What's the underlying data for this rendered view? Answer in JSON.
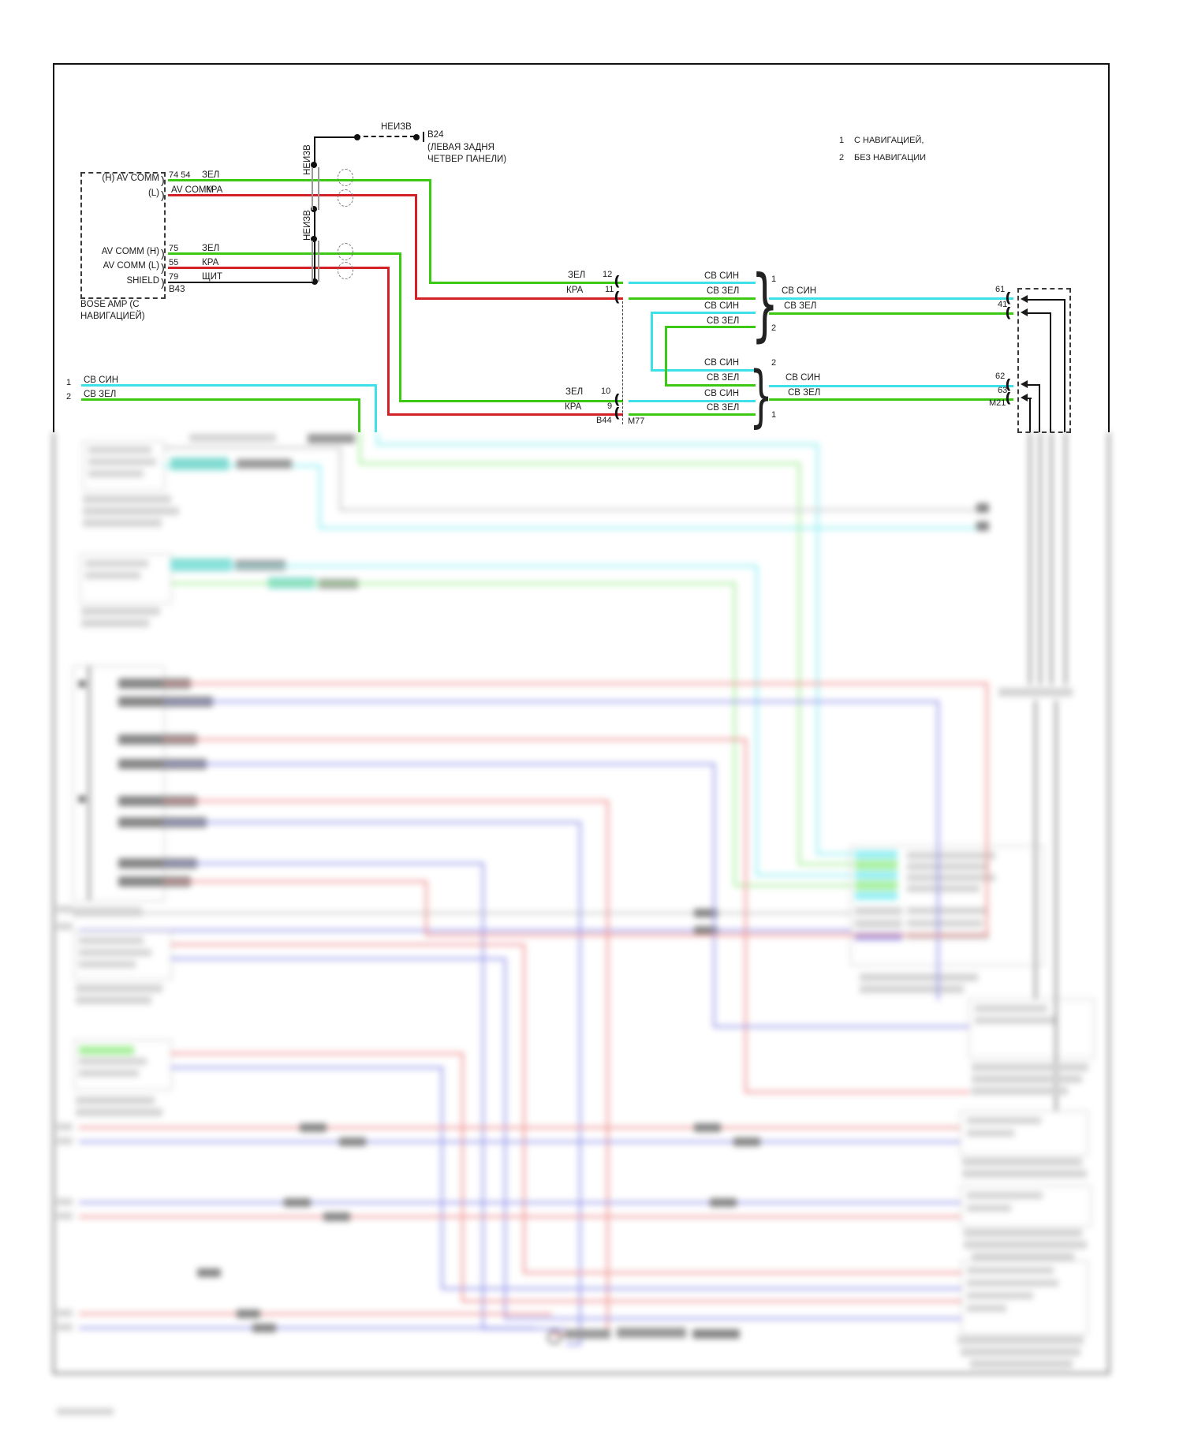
{
  "palette": {
    "wire_green": "#3cc914",
    "wire_red": "#d42128",
    "wire_cyan": "#3fe1e9",
    "wire_black": "#111111",
    "blur_gray": "#c9c9c9",
    "blur_cyan": "#8deef2",
    "blur_green": "#9fee93",
    "blur_red": "#f09090",
    "blur_blue": "#9595ea",
    "teal_highlight": "#76d8ce"
  },
  "glyphs": {
    "paren": ")",
    "arcs": "((",
    "brace": "}"
  },
  "legend": {
    "n1": "1",
    "t1": "С НАВИГАЦИЕЙ,",
    "n2": "2",
    "t2": "БЕЗ НАВИГАЦИИ"
  },
  "b24": {
    "wire_label": "НЕИЗВ",
    "twist_label1": "НЕИЗВ",
    "twist_label2": "НЕИЗВ",
    "code": "B24",
    "desc1": "(ЛЕВАЯ ЗАДНЯ",
    "desc2": "ЧЕТВЕР ПАНЕЛИ)"
  },
  "bose": {
    "caption1": "BOSE AMP (С",
    "caption2": "НАВИГАЦИЕЙ)",
    "connector_code": "B43",
    "rows": [
      {
        "label": "(H) AV COMM",
        "pin": "74 54",
        "wire": "ЗЕЛ"
      },
      {
        "label": "(L)",
        "pin": "",
        "wire": "КРА",
        "wire_prefix": "AV COMM"
      },
      {
        "label": "AV COMM (H)",
        "pin": "75",
        "wire": "ЗЕЛ"
      },
      {
        "label": "AV COMM (L)",
        "pin": "55",
        "wire": "КРА"
      },
      {
        "label": "SHIELD",
        "pin": "79",
        "wire": "ЩИТ"
      }
    ]
  },
  "left_pair": {
    "n1": "1",
    "label1": "СВ СИН",
    "n2": "2",
    "label2": "СВ ЗЕЛ"
  },
  "junction_upper": {
    "in1_wire": "ЗЕЛ",
    "in1_pin": "12",
    "in2_wire": "КРА",
    "in2_pin": "11",
    "b1": "СВ СИН",
    "b2": "СВ ЗЕЛ",
    "b3": "СВ СИН",
    "b4": "СВ ЗЕЛ",
    "tag_top": "1",
    "tag_bottom": "2",
    "out1": "СВ СИН",
    "out2": "СВ ЗЕЛ",
    "pin1": "61",
    "pin2": "41"
  },
  "junction_lower": {
    "in1_wire": "ЗЕЛ",
    "in1_pin": "10",
    "in2_wire": "КРА",
    "in2_pin": "9",
    "code_left": "B44",
    "code_right": "М77",
    "b1": "СВ СИН",
    "b2": "СВ ЗЕЛ",
    "b3": "СВ СИН",
    "b4": "СВ ЗЕЛ",
    "tag_top": "2",
    "tag_bottom": "1",
    "out1": "СВ СИН",
    "out2": "СВ ЗЕЛ",
    "pin1": "62",
    "pin2": "63",
    "dest_code": "М21"
  }
}
